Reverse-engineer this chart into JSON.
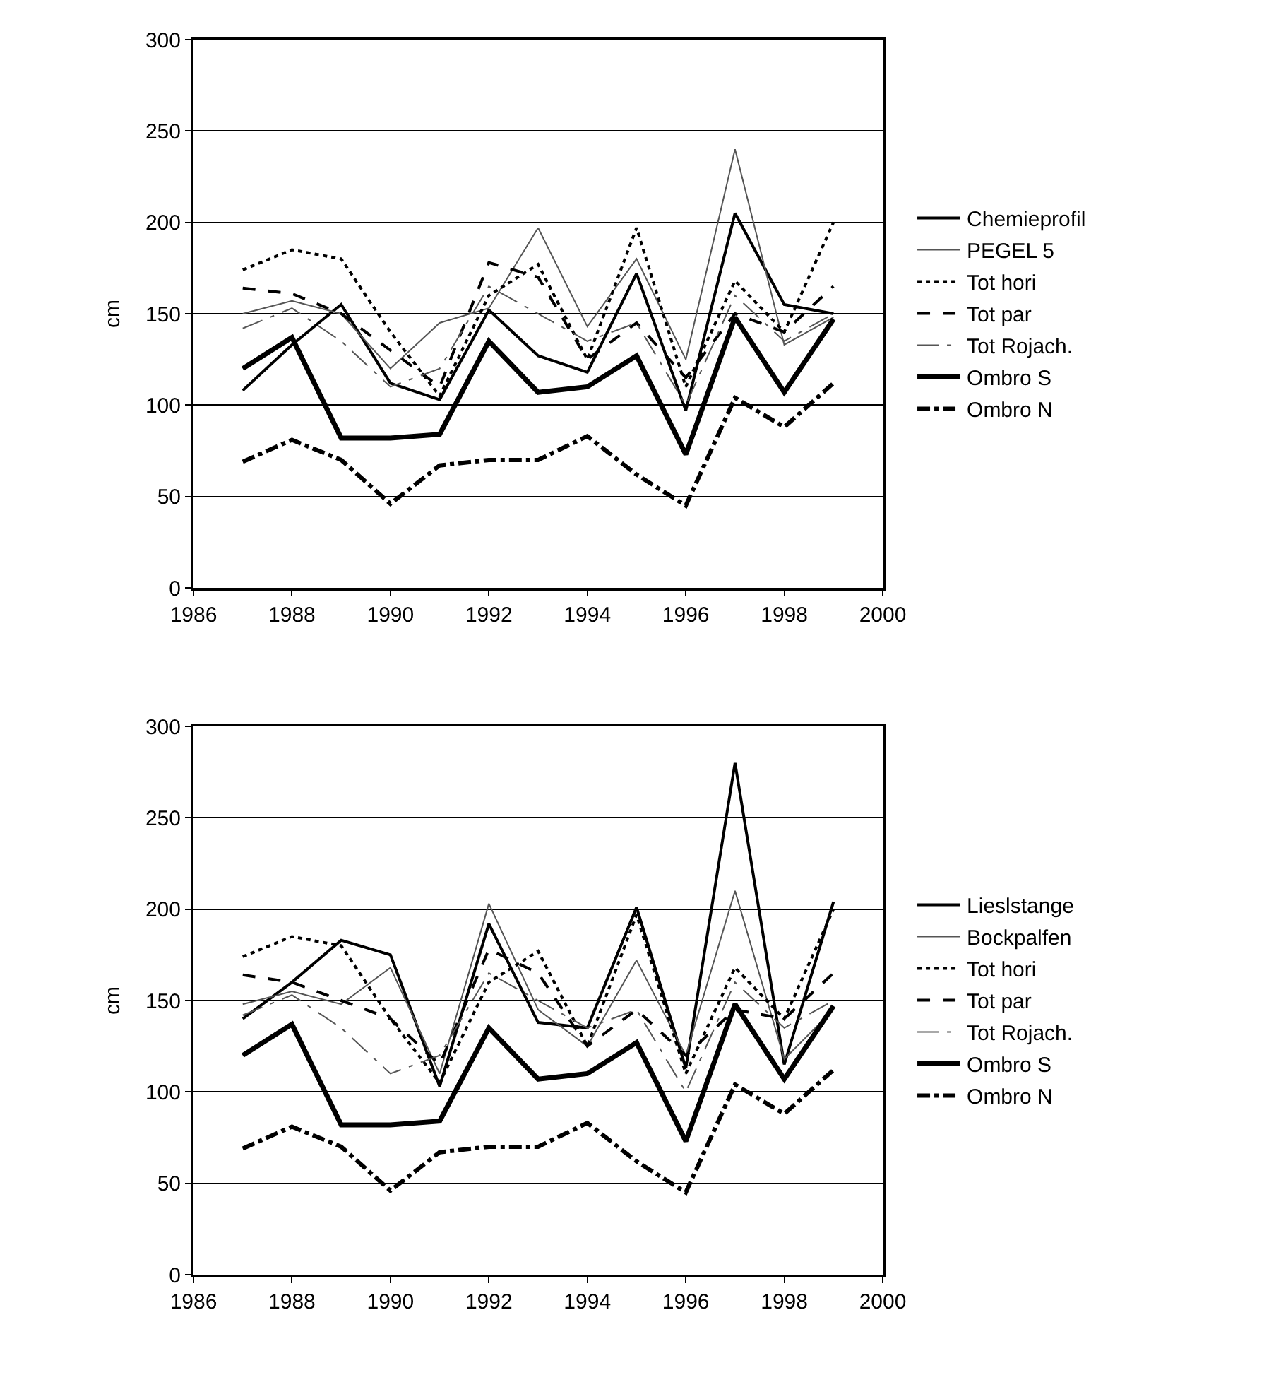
{
  "chart_data": [
    {
      "type": "line",
      "ylabel": "cm",
      "x": [
        1987,
        1988,
        1989,
        1990,
        1991,
        1992,
        1993,
        1994,
        1995,
        1996,
        1997,
        1998,
        1999
      ],
      "xlim": [
        1986,
        2000
      ],
      "xticks": [
        1986,
        1988,
        1990,
        1992,
        1994,
        1996,
        1998,
        2000
      ],
      "ylim": [
        0,
        300
      ],
      "yticks": [
        0,
        50,
        100,
        150,
        200,
        250,
        300
      ],
      "grid": "y",
      "legend": "right",
      "marker": "none",
      "series": [
        {
          "name": "Chemieprofil",
          "color": "#000000",
          "line_style": "solid",
          "values": [
            108,
            133,
            155,
            112,
            103,
            152,
            127,
            118,
            172,
            97,
            205,
            155,
            150
          ]
        },
        {
          "name": "PEGEL 5",
          "color": "#555555",
          "line_style": "solid",
          "values": [
            150,
            157,
            150,
            120,
            145,
            153,
            197,
            143,
            180,
            125,
            240,
            133,
            148
          ]
        },
        {
          "name": "Tot hori",
          "color": "#000000",
          "line_style": "dotted",
          "values": [
            174,
            185,
            180,
            140,
            105,
            160,
            177,
            125,
            197,
            110,
            168,
            140,
            200
          ]
        },
        {
          "name": "Tot par",
          "color": "#000000",
          "line_style": "dashed",
          "values": [
            164,
            161,
            150,
            130,
            110,
            178,
            170,
            125,
            145,
            115,
            150,
            140,
            165
          ]
        },
        {
          "name": "Tot Rojach.",
          "color": "#555555",
          "line_style": "dashed",
          "values": [
            142,
            153,
            135,
            110,
            120,
            165,
            150,
            135,
            145,
            100,
            160,
            135,
            150
          ]
        },
        {
          "name": "Ombro S",
          "color": "#000000",
          "line_style": "solid",
          "values": [
            120,
            137,
            82,
            82,
            84,
            135,
            107,
            110,
            127,
            73,
            148,
            107,
            147
          ]
        },
        {
          "name": "Ombro N",
          "color": "#000000",
          "line_style": "dashed",
          "values": [
            69,
            81,
            70,
            46,
            67,
            70,
            70,
            83,
            62,
            45,
            104,
            88,
            112
          ]
        }
      ]
    },
    {
      "type": "line",
      "ylabel": "cm",
      "x": [
        1987,
        1988,
        1989,
        1990,
        1991,
        1992,
        1993,
        1994,
        1995,
        1996,
        1997,
        1998,
        1999
      ],
      "xlim": [
        1986,
        2000
      ],
      "xticks": [
        1986,
        1988,
        1990,
        1992,
        1994,
        1996,
        1998,
        2000
      ],
      "ylim": [
        0,
        300
      ],
      "yticks": [
        0,
        50,
        100,
        150,
        200,
        250,
        300
      ],
      "grid": "y",
      "legend": "right",
      "marker": "none",
      "series": [
        {
          "name": "Lieslstange",
          "color": "#000000",
          "line_style": "solid",
          "values": [
            140,
            160,
            183,
            175,
            103,
            192,
            138,
            135,
            201,
            113,
            280,
            115,
            204
          ]
        },
        {
          "name": "Bockpalfen",
          "color": "#555555",
          "line_style": "solid",
          "values": [
            148,
            155,
            148,
            168,
            110,
            203,
            145,
            125,
            172,
            120,
            210,
            118,
            145
          ]
        },
        {
          "name": "Tot hori",
          "color": "#000000",
          "line_style": "dotted",
          "values": [
            174,
            185,
            180,
            140,
            105,
            160,
            177,
            125,
            197,
            110,
            168,
            140,
            200
          ]
        },
        {
          "name": "Tot par",
          "color": "#000000",
          "line_style": "dashed",
          "values": [
            164,
            160,
            150,
            140,
            115,
            178,
            165,
            125,
            145,
            120,
            145,
            140,
            165
          ]
        },
        {
          "name": "Tot Rojach.",
          "color": "#555555",
          "line_style": "dashed",
          "values": [
            142,
            153,
            135,
            110,
            120,
            165,
            150,
            135,
            145,
            100,
            160,
            135,
            150
          ]
        },
        {
          "name": "Ombro S",
          "color": "#000000",
          "line_style": "solid",
          "values": [
            120,
            137,
            82,
            82,
            84,
            135,
            107,
            110,
            127,
            73,
            148,
            107,
            147
          ]
        },
        {
          "name": "Ombro N",
          "color": "#000000",
          "line_style": "dashed",
          "values": [
            69,
            81,
            70,
            46,
            67,
            70,
            70,
            83,
            62,
            45,
            104,
            88,
            112
          ]
        }
      ]
    }
  ]
}
